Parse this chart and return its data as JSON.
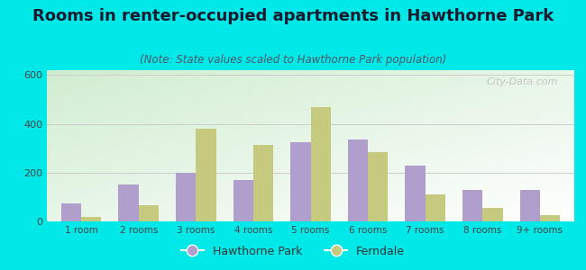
{
  "title": "Rooms in renter-occupied apartments in Hawthorne Park",
  "subtitle": "(Note: State values scaled to Hawthorne Park population)",
  "categories": [
    "1 room",
    "2 rooms",
    "3 rooms",
    "4 rooms",
    "5 rooms",
    "6 rooms",
    "7 rooms",
    "8 rooms",
    "9+ rooms"
  ],
  "hawthorne_values": [
    75,
    150,
    200,
    170,
    325,
    335,
    230,
    130,
    130
  ],
  "ferndale_values": [
    20,
    65,
    380,
    315,
    470,
    285,
    110,
    55,
    25
  ],
  "hawthorne_color": "#b09fcc",
  "ferndale_color": "#c5ca7e",
  "background_outer": "#00e8e8",
  "ylim": [
    0,
    620
  ],
  "yticks": [
    0,
    200,
    400,
    600
  ],
  "bar_width": 0.35,
  "title_fontsize": 13,
  "subtitle_fontsize": 8.5,
  "legend_labels": [
    "Hawthorne Park",
    "Ferndale"
  ],
  "watermark": "City-Data.com"
}
